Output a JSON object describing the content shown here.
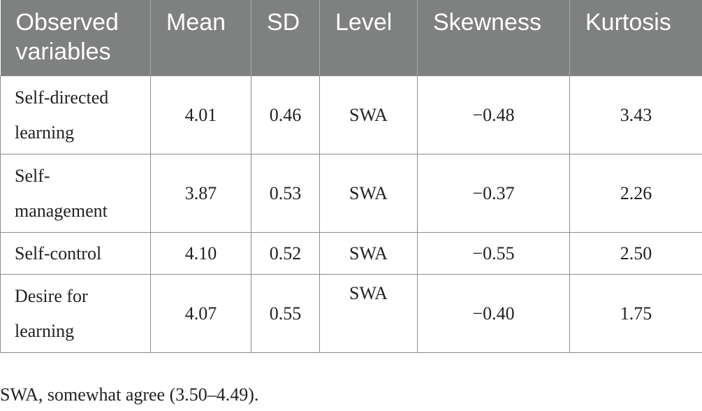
{
  "table": {
    "headers": [
      "Observed variables",
      "Mean",
      "SD",
      "Level",
      "Skewness",
      "Kurtosis"
    ],
    "rows": [
      {
        "variable": "Self-directed learning",
        "variable_lines": [
          "Self-directed",
          "learning"
        ],
        "mean": "4.01",
        "sd": "0.46",
        "level": "SWA",
        "skewness": "−0.48",
        "kurtosis": "3.43"
      },
      {
        "variable": "Self-management",
        "variable_lines": [
          "Self-",
          "management"
        ],
        "mean": "3.87",
        "sd": "0.53",
        "level": "SWA",
        "skewness": "−0.37",
        "kurtosis": "2.26"
      },
      {
        "variable": "Self-control",
        "variable_lines": [
          "Self-control"
        ],
        "mean": "4.10",
        "sd": "0.52",
        "level": "SWA",
        "skewness": "−0.55",
        "kurtosis": "2.50"
      },
      {
        "variable": "Desire for learning",
        "variable_lines": [
          "Desire for",
          "learning"
        ],
        "mean": "4.07",
        "sd": "0.55",
        "level": "SWA",
        "skewness": "−0.40",
        "kurtosis": "1.75"
      }
    ]
  },
  "footnote": "SWA, somewhat agree (3.50–4.49)."
}
